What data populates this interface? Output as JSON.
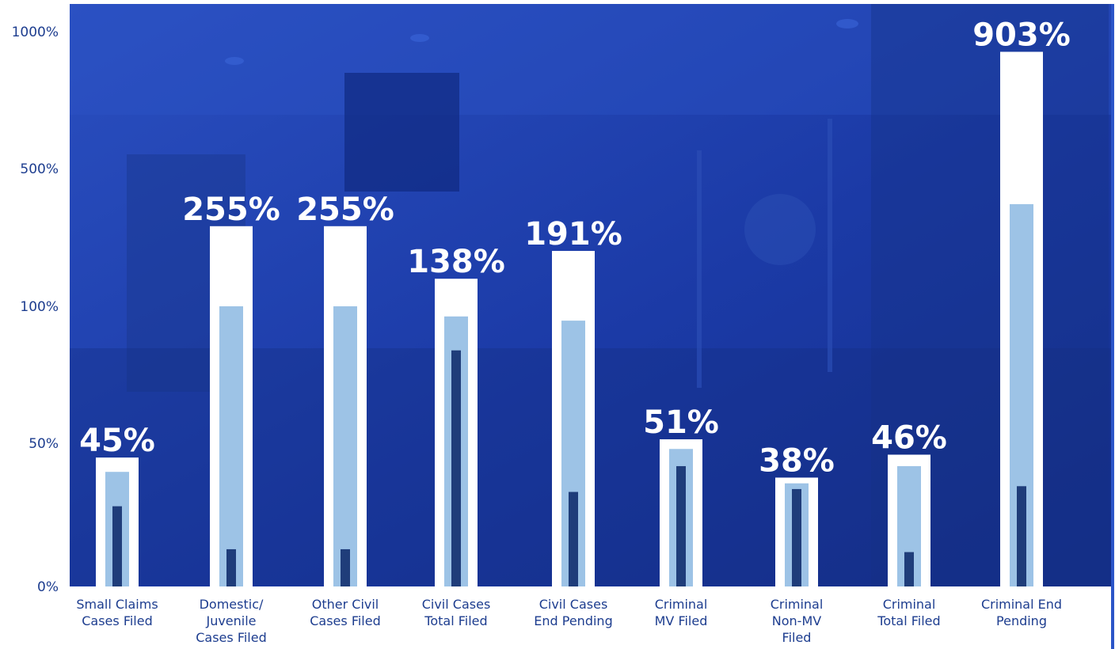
{
  "chart_data": {
    "type": "bar",
    "y_scale": "log",
    "y_ticks": [
      "0%",
      "50%",
      "100%",
      "500%",
      "1000%"
    ],
    "categories": [
      [
        "Small Claims",
        "Cases Filed"
      ],
      [
        "Domestic/",
        "Juvenile",
        "Cases Filed"
      ],
      [
        "Other Civil",
        "Cases Filed"
      ],
      [
        "Civil Cases",
        "Total Filed"
      ],
      [
        "Civil Cases",
        "End Pending"
      ],
      [
        "Criminal",
        "MV Filed"
      ],
      [
        "Criminal",
        "Non-MV",
        "Filed"
      ],
      [
        "Criminal",
        "Total Filed"
      ],
      [
        "Criminal End",
        "Pending"
      ]
    ],
    "labels": [
      "45%",
      "255%",
      "255%",
      "138%",
      "191%",
      "51%",
      "38%",
      "46%",
      "903%"
    ],
    "series": [
      {
        "values": [
          45,
          255,
          255,
          138,
          191,
          51,
          38,
          46,
          903
        ]
      },
      {
        "values": [
          40,
          100,
          100,
          95,
          93,
          48,
          36,
          42,
          330
        ]
      },
      {
        "values": [
          28,
          13,
          13,
          80,
          33,
          42,
          34,
          12,
          35
        ]
      }
    ],
    "colors": {
      "outer": "#ffffff",
      "middle": "#9dc3e6",
      "inner": "#1f3d7a",
      "tick_text": "#1d3d8f",
      "background": "#1f3fb0",
      "right_rule": "#2b55c8"
    }
  }
}
